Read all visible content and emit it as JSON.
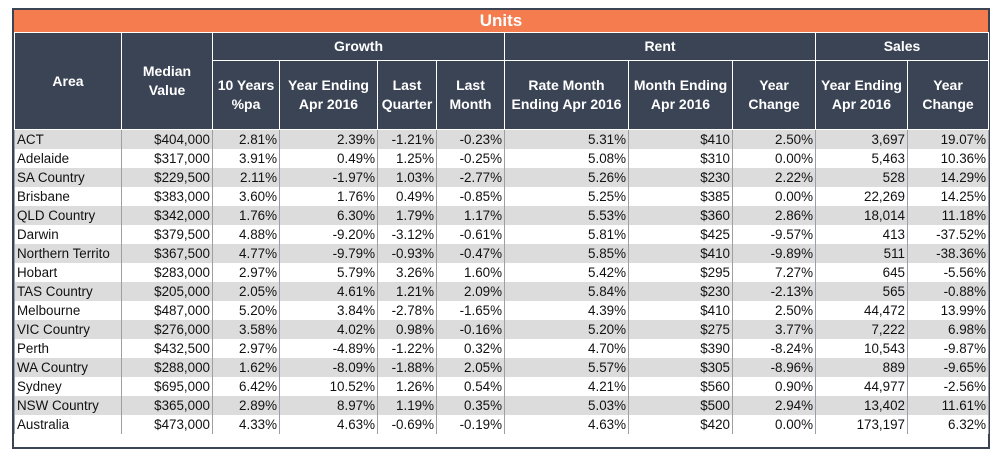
{
  "title": "Units",
  "colors": {
    "title_bg": "#f47c4f",
    "header_bg": "#3b4455",
    "row_shade": "#dcdcdc"
  },
  "headers": {
    "area": "Area",
    "median_value": [
      "Median",
      "Value"
    ],
    "growth": "Growth",
    "rent": "Rent",
    "sales": "Sales",
    "growth_10yr": [
      "10 Years",
      "%pa"
    ],
    "growth_ye_apr": [
      "Year Ending",
      "Apr 2016"
    ],
    "growth_last_quarter": [
      "Last",
      "Quarter"
    ],
    "growth_last_month": [
      "Last",
      "Month"
    ],
    "rent_rate": [
      "Rate Month",
      "Ending Apr 2016"
    ],
    "rent_month": [
      "Month Ending",
      "Apr 2016"
    ],
    "rent_change": [
      "Year",
      "Change"
    ],
    "sales_ye_apr": [
      "Year Ending",
      "Apr 2016"
    ],
    "sales_change": [
      "Year",
      "Change"
    ]
  },
  "rows": [
    [
      "ACT",
      "$404,000",
      "2.81%",
      "2.39%",
      "-1.21%",
      "-0.23%",
      "5.31%",
      "$410",
      "2.50%",
      "3,697",
      "19.07%"
    ],
    [
      "Adelaide",
      "$317,000",
      "3.91%",
      "0.49%",
      "1.25%",
      "-0.25%",
      "5.08%",
      "$310",
      "0.00%",
      "5,463",
      "10.36%"
    ],
    [
      "SA Country",
      "$229,500",
      "2.11%",
      "-1.97%",
      "1.03%",
      "-2.77%",
      "5.26%",
      "$230",
      "2.22%",
      "528",
      "14.29%"
    ],
    [
      "Brisbane",
      "$383,000",
      "3.60%",
      "1.76%",
      "0.49%",
      "-0.85%",
      "5.25%",
      "$385",
      "0.00%",
      "22,269",
      "14.25%"
    ],
    [
      "QLD Country",
      "$342,000",
      "1.76%",
      "6.30%",
      "1.79%",
      "1.17%",
      "5.53%",
      "$360",
      "2.86%",
      "18,014",
      "11.18%"
    ],
    [
      "Darwin",
      "$379,500",
      "4.88%",
      "-9.20%",
      "-3.12%",
      "-0.61%",
      "5.81%",
      "$425",
      "-9.57%",
      "413",
      "-37.52%"
    ],
    [
      "Northern Territo",
      "$367,500",
      "4.77%",
      "-9.79%",
      "-0.93%",
      "-0.47%",
      "5.85%",
      "$410",
      "-9.89%",
      "511",
      "-38.36%"
    ],
    [
      "Hobart",
      "$283,000",
      "2.97%",
      "5.79%",
      "3.26%",
      "1.60%",
      "5.42%",
      "$295",
      "7.27%",
      "645",
      "-5.56%"
    ],
    [
      "TAS Country",
      "$205,000",
      "2.05%",
      "4.61%",
      "1.21%",
      "2.09%",
      "5.84%",
      "$230",
      "-2.13%",
      "565",
      "-0.88%"
    ],
    [
      "Melbourne",
      "$487,000",
      "5.20%",
      "3.84%",
      "-2.78%",
      "-1.65%",
      "4.39%",
      "$410",
      "2.50%",
      "44,472",
      "13.99%"
    ],
    [
      "VIC Country",
      "$276,000",
      "3.58%",
      "4.02%",
      "0.98%",
      "-0.16%",
      "5.20%",
      "$275",
      "3.77%",
      "7,222",
      "6.98%"
    ],
    [
      "Perth",
      "$432,500",
      "2.97%",
      "-4.89%",
      "-1.22%",
      "0.32%",
      "4.70%",
      "$390",
      "-8.24%",
      "10,543",
      "-9.87%"
    ],
    [
      "WA Country",
      "$288,000",
      "1.62%",
      "-8.09%",
      "-1.88%",
      "2.05%",
      "5.57%",
      "$305",
      "-8.96%",
      "889",
      "-9.65%"
    ],
    [
      "Sydney",
      "$695,000",
      "6.42%",
      "10.52%",
      "1.26%",
      "0.54%",
      "4.21%",
      "$560",
      "0.90%",
      "44,977",
      "-2.56%"
    ],
    [
      "NSW Country",
      "$365,000",
      "2.89%",
      "8.97%",
      "1.19%",
      "0.35%",
      "5.03%",
      "$500",
      "2.94%",
      "13,402",
      "11.61%"
    ],
    [
      "Australia",
      "$473,000",
      "4.33%",
      "4.63%",
      "-0.69%",
      "-0.19%",
      "4.63%",
      "$420",
      "0.00%",
      "173,197",
      "6.32%"
    ]
  ]
}
